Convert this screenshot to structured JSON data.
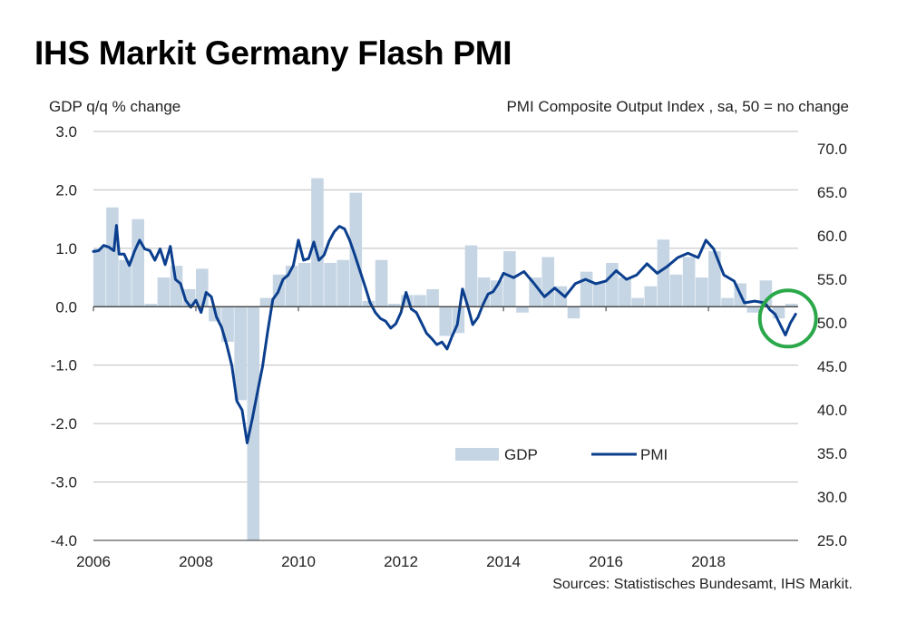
{
  "title": "IHS Markit Germany Flash PMI",
  "source": "Sources: Statistisches Bundesamt, IHS Markit.",
  "chart_data": {
    "type": "bar+line",
    "left_axis": {
      "label": "GDP q/q % change",
      "range": [
        -4.0,
        3.0
      ],
      "ticks": [
        "3.0",
        "2.0",
        "1.0",
        "0.0",
        "-1.0",
        "-2.0",
        "-3.0",
        "-4.0"
      ]
    },
    "right_axis": {
      "label": "PMI Composite  Output Index , sa, 50 = no change",
      "range": [
        25.0,
        72.0
      ],
      "ticks": [
        "70.0",
        "65.0",
        "60.0",
        "55.0",
        "50.0",
        "45.0",
        "40.0",
        "35.0",
        "30.0",
        "25.0"
      ]
    },
    "x_axis": {
      "range": [
        2006.0,
        2019.75
      ],
      "ticks": [
        "2006",
        "2008",
        "2010",
        "2012",
        "2014",
        "2016",
        "2018"
      ]
    },
    "legend": {
      "position": "bottom-right",
      "items": [
        "GDP",
        "PMI"
      ]
    },
    "grid": "horizontal",
    "colors": {
      "gdp": "#c5d5e4",
      "pmi": "#0b3f8e",
      "highlight": "#2aa84a"
    },
    "highlight_circle": "2019 PMI trough",
    "series": [
      {
        "name": "GDP",
        "type": "bar",
        "axis": "left",
        "x": [
          2006.0,
          2006.25,
          2006.5,
          2006.75,
          2007.0,
          2007.25,
          2007.5,
          2007.75,
          2008.0,
          2008.25,
          2008.5,
          2008.75,
          2009.0,
          2009.25,
          2009.5,
          2009.75,
          2010.0,
          2010.25,
          2010.5,
          2010.75,
          2011.0,
          2011.25,
          2011.5,
          2011.75,
          2012.0,
          2012.25,
          2012.5,
          2012.75,
          2013.0,
          2013.25,
          2013.5,
          2013.75,
          2014.0,
          2014.25,
          2014.5,
          2014.75,
          2015.0,
          2015.25,
          2015.5,
          2015.75,
          2016.0,
          2016.25,
          2016.5,
          2016.75,
          2017.0,
          2017.25,
          2017.5,
          2017.75,
          2018.0,
          2018.25,
          2018.5,
          2018.75,
          2019.0,
          2019.25,
          2019.5
        ],
        "values": [
          1.0,
          1.7,
          0.8,
          1.5,
          0.05,
          0.5,
          0.7,
          0.3,
          0.65,
          -0.25,
          -0.6,
          -1.6,
          -4.0,
          0.15,
          0.55,
          0.7,
          0.75,
          2.2,
          0.75,
          0.8,
          1.95,
          0.1,
          0.8,
          0.05,
          0.2,
          0.2,
          0.3,
          -0.5,
          -0.45,
          1.05,
          0.5,
          0.45,
          0.95,
          -0.1,
          0.5,
          0.85,
          0.35,
          -0.2,
          0.6,
          0.4,
          0.75,
          0.5,
          0.15,
          0.35,
          1.15,
          0.55,
          0.85,
          0.5,
          0.95,
          0.15,
          0.4,
          -0.1,
          0.45,
          -0.2,
          0.05
        ]
      },
      {
        "name": "PMI",
        "type": "line",
        "axis": "right",
        "x": [
          2006.0,
          2006.1,
          2006.2,
          2006.3,
          2006.4,
          2006.45,
          2006.5,
          2006.6,
          2006.7,
          2006.8,
          2006.9,
          2007.0,
          2007.1,
          2007.2,
          2007.3,
          2007.4,
          2007.5,
          2007.6,
          2007.7,
          2007.8,
          2007.9,
          2008.0,
          2008.1,
          2008.2,
          2008.3,
          2008.4,
          2008.5,
          2008.6,
          2008.7,
          2008.8,
          2008.9,
          2009.0,
          2009.1,
          2009.2,
          2009.3,
          2009.4,
          2009.5,
          2009.6,
          2009.7,
          2009.8,
          2009.9,
          2010.0,
          2010.1,
          2010.2,
          2010.3,
          2010.4,
          2010.5,
          2010.6,
          2010.7,
          2010.8,
          2010.9,
          2011.0,
          2011.1,
          2011.2,
          2011.3,
          2011.4,
          2011.5,
          2011.6,
          2011.7,
          2011.8,
          2011.9,
          2012.0,
          2012.1,
          2012.2,
          2012.3,
          2012.4,
          2012.5,
          2012.6,
          2012.7,
          2012.8,
          2012.9,
          2013.0,
          2013.1,
          2013.2,
          2013.3,
          2013.4,
          2013.5,
          2013.6,
          2013.7,
          2013.8,
          2013.9,
          2014.0,
          2014.2,
          2014.4,
          2014.6,
          2014.8,
          2015.0,
          2015.2,
          2015.4,
          2015.6,
          2015.8,
          2016.0,
          2016.2,
          2016.4,
          2016.6,
          2016.8,
          2017.0,
          2017.2,
          2017.4,
          2017.6,
          2017.8,
          2017.95,
          2018.1,
          2018.3,
          2018.5,
          2018.7,
          2018.9,
          2019.1,
          2019.2,
          2019.3,
          2019.4,
          2019.5,
          2019.6,
          2019.7
        ],
        "values": [
          58.2,
          58.3,
          58.9,
          58.7,
          58.3,
          61.2,
          57.9,
          57.9,
          56.6,
          58.2,
          59.5,
          58.5,
          58.3,
          57.2,
          58.5,
          56.7,
          58.8,
          55.0,
          54.5,
          52.6,
          51.8,
          52.6,
          51.2,
          53.5,
          53.0,
          50.7,
          49.5,
          47.5,
          45.1,
          41.0,
          40.0,
          36.2,
          39.0,
          42.0,
          45.0,
          49.0,
          52.7,
          53.5,
          55.0,
          55.5,
          56.6,
          59.5,
          57.2,
          57.4,
          59.3,
          57.2,
          57.8,
          59.4,
          60.5,
          61.1,
          60.8,
          59.5,
          57.8,
          56.0,
          54.2,
          52.3,
          51.2,
          50.5,
          50.2,
          49.4,
          49.9,
          51.2,
          53.5,
          51.6,
          51.2,
          50.0,
          48.8,
          48.2,
          47.5,
          47.8,
          47.0,
          48.5,
          49.8,
          53.9,
          52.0,
          49.8,
          50.6,
          52.1,
          53.3,
          53.6,
          54.5,
          55.7,
          55.2,
          55.9,
          54.5,
          53.0,
          54.0,
          53.0,
          54.5,
          55.0,
          54.5,
          54.8,
          56.0,
          55.0,
          55.5,
          56.8,
          55.7,
          56.5,
          57.5,
          58.0,
          57.5,
          59.5,
          58.5,
          55.5,
          54.8,
          52.3,
          52.5,
          52.3,
          51.5,
          51.0,
          49.8,
          48.6,
          50.0,
          51.0
        ]
      }
    ]
  }
}
